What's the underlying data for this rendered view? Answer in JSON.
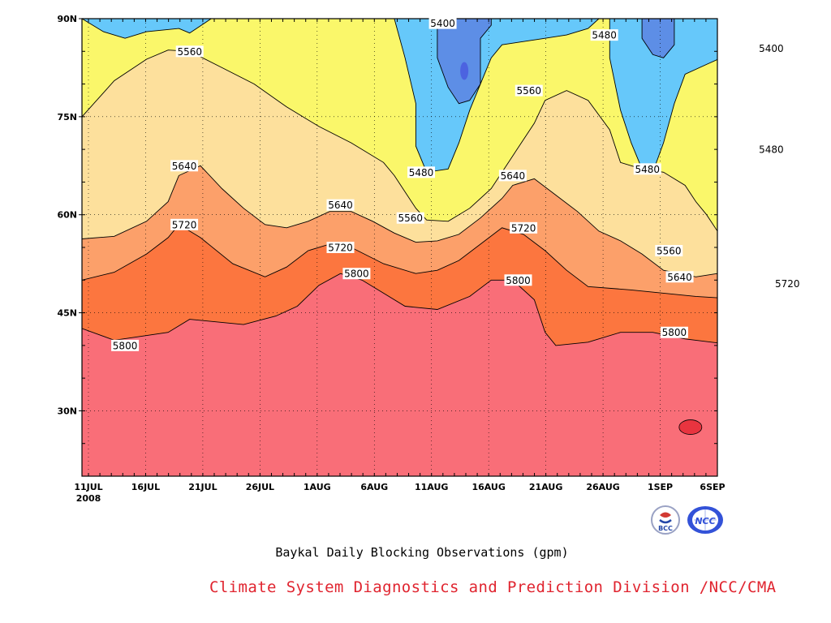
{
  "chart_data": {
    "type": "contour",
    "title": "Baykal Daily Blocking Observations (gpm)",
    "credit": "Climate System Diagnostics and Prediction Division /NCC/CMA",
    "xlabel": "",
    "ylabel": "",
    "x_ticks": [
      "11JUL",
      "16JUL",
      "21JUL",
      "26JUL",
      "1AUG",
      "6AUG",
      "11AUG",
      "16AUG",
      "21AUG",
      "26AUG",
      "1SEP",
      "6SEP"
    ],
    "x_year_label": "2008",
    "y_ticks": [
      "30N",
      "45N",
      "60N",
      "75N",
      "90N"
    ],
    "ylim_lat": [
      20,
      90
    ],
    "xlim_day": [
      0,
      59
    ],
    "grid": true,
    "levels": [
      5400,
      5480,
      5560,
      5640,
      5720,
      5800,
      5880
    ],
    "level_colors": {
      "below_5400": "#4c63e0",
      "5400_5480": "#5d8ee6",
      "5480_5560": "#66c8fa",
      "5560_5640": "#faf76a",
      "5640_5720": "#fde09c",
      "5720_5800": "#fca06a",
      "5800_5880": "#fc763f",
      "above_5880": "#f96e78",
      "above_5960": "#e8343f"
    },
    "contour_lines": [
      {
        "level": 5800,
        "points": [
          [
            0,
            42.6
          ],
          [
            3,
            40.8
          ],
          [
            8,
            42
          ],
          [
            10,
            44
          ],
          [
            15,
            43.2
          ],
          [
            18,
            44.5
          ],
          [
            20,
            46
          ],
          [
            22,
            49.2
          ],
          [
            24,
            51
          ],
          [
            26,
            50
          ],
          [
            28,
            48
          ],
          [
            30,
            46
          ],
          [
            33,
            45.5
          ],
          [
            36,
            47.5
          ],
          [
            38,
            50
          ],
          [
            40,
            50
          ],
          [
            42,
            47
          ],
          [
            43,
            42
          ],
          [
            44,
            40
          ],
          [
            47,
            40.5
          ],
          [
            50,
            42
          ],
          [
            53,
            42
          ],
          [
            56,
            41
          ],
          [
            61,
            40
          ],
          [
            64,
            40.8
          ],
          [
            67,
            40
          ],
          [
            70,
            39
          ],
          [
            73,
            39
          ],
          [
            75,
            39.8
          ]
        ]
      },
      {
        "level": 5720,
        "points": [
          [
            0,
            50
          ],
          [
            3,
            51.2
          ],
          [
            6,
            54
          ],
          [
            8,
            56.5
          ],
          [
            9,
            58.5
          ],
          [
            11,
            56.5
          ],
          [
            14,
            52.5
          ],
          [
            17,
            50.5
          ],
          [
            19,
            52
          ],
          [
            21,
            54.5
          ],
          [
            23,
            55.5
          ],
          [
            25,
            55
          ],
          [
            28,
            52.5
          ],
          [
            31,
            51
          ],
          [
            33,
            51.5
          ],
          [
            35,
            53
          ],
          [
            37,
            55.5
          ],
          [
            39,
            58
          ],
          [
            41,
            57
          ],
          [
            43,
            54.5
          ],
          [
            45,
            51.5
          ],
          [
            47,
            49
          ],
          [
            51,
            48.5
          ],
          [
            54,
            48
          ],
          [
            57,
            47.5
          ],
          [
            62,
            47
          ],
          [
            65,
            48
          ],
          [
            67,
            49
          ],
          [
            70,
            48.5
          ],
          [
            73,
            47
          ],
          [
            75,
            46
          ]
        ]
      },
      {
        "level": 5640,
        "points": [
          [
            0,
            56.3
          ],
          [
            3,
            56.7
          ],
          [
            6,
            59
          ],
          [
            8,
            62
          ],
          [
            9,
            66
          ],
          [
            11,
            67.5
          ],
          [
            13,
            64
          ],
          [
            15,
            61
          ],
          [
            17,
            58.5
          ],
          [
            19,
            58
          ],
          [
            21,
            59
          ],
          [
            23,
            60.5
          ],
          [
            25,
            60.5
          ],
          [
            27,
            59
          ],
          [
            29,
            57.2
          ],
          [
            31,
            55.8
          ],
          [
            33,
            56
          ],
          [
            35,
            57
          ],
          [
            37,
            59.5
          ],
          [
            39,
            62.5
          ],
          [
            40,
            64.5
          ],
          [
            42,
            65.5
          ],
          [
            44,
            63
          ],
          [
            46,
            60.5
          ],
          [
            48,
            57.5
          ],
          [
            50,
            56
          ],
          [
            52,
            54
          ],
          [
            54,
            51.5
          ],
          [
            57,
            50.5
          ],
          [
            59,
            51
          ],
          [
            62,
            53
          ],
          [
            65,
            55
          ],
          [
            68,
            58
          ],
          [
            70,
            62
          ],
          [
            72,
            67
          ],
          [
            73,
            71
          ],
          [
            74,
            73.5
          ],
          [
            75,
            74.5
          ]
        ]
      },
      {
        "level": 5560,
        "points": [
          [
            0,
            75
          ],
          [
            3,
            80.5
          ],
          [
            6,
            83.8
          ],
          [
            8,
            85.2
          ],
          [
            10,
            85
          ],
          [
            13,
            82.5
          ],
          [
            16,
            80
          ],
          [
            19,
            76.5
          ],
          [
            22,
            73.5
          ],
          [
            25,
            71
          ],
          [
            28,
            68
          ],
          [
            29,
            66
          ],
          [
            30,
            63.5
          ],
          [
            31,
            61
          ],
          [
            32,
            59.2
          ],
          [
            34,
            59
          ],
          [
            36,
            61
          ],
          [
            38,
            64
          ],
          [
            40,
            69
          ],
          [
            42,
            74
          ],
          [
            43,
            77.5
          ],
          [
            45,
            79
          ],
          [
            47,
            77.5
          ],
          [
            49,
            73
          ],
          [
            50,
            68
          ],
          [
            52,
            67
          ],
          [
            54,
            66.5
          ],
          [
            56,
            64.5
          ],
          [
            57,
            62
          ],
          [
            58,
            60
          ],
          [
            59,
            57.5
          ],
          [
            60,
            55.8
          ],
          [
            62,
            55.8
          ],
          [
            64,
            58
          ],
          [
            66,
            60
          ],
          [
            69,
            63
          ],
          [
            71,
            66
          ],
          [
            73,
            71
          ],
          [
            74,
            75
          ],
          [
            75,
            78.5
          ],
          [
            75,
            80
          ]
        ]
      },
      {
        "level": 5480,
        "points": [
          [
            29,
            90
          ],
          [
            30,
            84
          ],
          [
            31,
            77
          ],
          [
            31,
            70.5
          ],
          [
            32,
            66.5
          ],
          [
            34,
            67
          ],
          [
            35,
            71
          ],
          [
            36,
            76
          ],
          [
            37,
            80
          ],
          [
            38,
            84
          ],
          [
            39,
            86
          ],
          [
            41,
            86.5
          ],
          [
            43,
            87
          ],
          [
            45,
            87.5
          ],
          [
            47,
            88.5
          ],
          [
            48,
            90
          ]
        ]
      },
      {
        "level": 5480,
        "points": [
          [
            49,
            90
          ],
          [
            49,
            84
          ],
          [
            50,
            76
          ],
          [
            51,
            71
          ],
          [
            52,
            67
          ],
          [
            53,
            66.5
          ],
          [
            54,
            71
          ],
          [
            55,
            77
          ],
          [
            56,
            81.5
          ],
          [
            58,
            83
          ],
          [
            60,
            84.5
          ],
          [
            61,
            82
          ],
          [
            63,
            78
          ],
          [
            64,
            74
          ],
          [
            65,
            72.5
          ],
          [
            66,
            73
          ],
          [
            68,
            79
          ],
          [
            69,
            84
          ],
          [
            71,
            86
          ],
          [
            73,
            87
          ],
          [
            75,
            88
          ]
        ]
      },
      {
        "level": 5480,
        "points": [
          [
            0,
            90
          ],
          [
            2,
            88
          ],
          [
            4,
            87
          ],
          [
            6,
            88
          ],
          [
            9,
            88.5
          ],
          [
            10,
            87.8
          ],
          [
            12,
            90
          ]
        ]
      },
      {
        "level": 5400,
        "points": [
          [
            33,
            90
          ],
          [
            33,
            84
          ],
          [
            34,
            79.5
          ],
          [
            35,
            77
          ],
          [
            36,
            77.5
          ],
          [
            37,
            80
          ],
          [
            37,
            84
          ],
          [
            37,
            87
          ],
          [
            38,
            89
          ],
          [
            38,
            90
          ]
        ]
      },
      {
        "level": 5400,
        "points": [
          [
            52,
            90
          ],
          [
            52,
            87
          ],
          [
            53,
            84.5
          ],
          [
            54,
            84
          ],
          [
            55,
            86
          ],
          [
            55,
            88
          ],
          [
            55,
            90
          ]
        ]
      },
      {
        "level": 5400,
        "points": [
          [
            62,
            86
          ],
          [
            63,
            83
          ],
          [
            64,
            79
          ],
          [
            65,
            78.5
          ],
          [
            66,
            81
          ],
          [
            66,
            84.5
          ],
          [
            64,
            87
          ],
          [
            62,
            86
          ]
        ]
      }
    ],
    "contour_labels": [
      {
        "text": "5400",
        "day": 33.5,
        "lat": 89.3
      },
      {
        "text": "5480",
        "day": 48.5,
        "lat": 87.5
      },
      {
        "text": "5400",
        "day": 64,
        "lat": 85.5
      },
      {
        "text": "5560",
        "day": 10,
        "lat": 85
      },
      {
        "text": "5560",
        "day": 41.5,
        "lat": 79
      },
      {
        "text": "5480",
        "day": 64,
        "lat": 70
      },
      {
        "text": "5480",
        "day": 31.5,
        "lat": 66.5
      },
      {
        "text": "5480",
        "day": 52.5,
        "lat": 67
      },
      {
        "text": "5640",
        "day": 9.5,
        "lat": 67.5
      },
      {
        "text": "5640",
        "day": 40,
        "lat": 66
      },
      {
        "text": "5640",
        "day": 24,
        "lat": 61.5
      },
      {
        "text": "5560",
        "day": 30.5,
        "lat": 59.5
      },
      {
        "text": "5720",
        "day": 9.5,
        "lat": 58.5
      },
      {
        "text": "5720",
        "day": 41,
        "lat": 58
      },
      {
        "text": "5720",
        "day": 24,
        "lat": 55
      },
      {
        "text": "5560",
        "day": 54.5,
        "lat": 54.5
      },
      {
        "text": "5640",
        "day": 55.5,
        "lat": 50.5
      },
      {
        "text": "5720",
        "day": 65.5,
        "lat": 49.5
      },
      {
        "text": "5800",
        "day": 25.5,
        "lat": 51
      },
      {
        "text": "5800",
        "day": 40.5,
        "lat": 50
      },
      {
        "text": "5800",
        "day": 4,
        "lat": 40
      },
      {
        "text": "5800",
        "day": 55,
        "lat": 42
      }
    ]
  },
  "logos": {
    "left_text": "BCC",
    "right_text": "NCC"
  }
}
